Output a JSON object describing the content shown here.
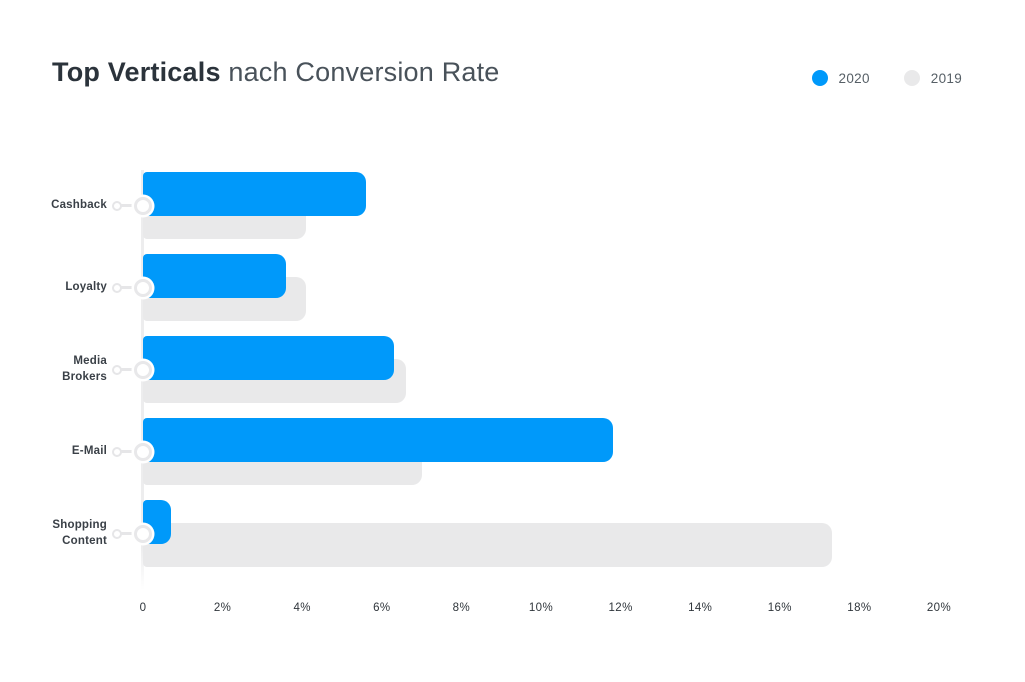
{
  "header": {
    "title_bold": "Top Verticals",
    "title_rest": " nach Conversion Rate"
  },
  "chart_data": {
    "type": "bar",
    "orientation": "horizontal",
    "title": "Top Verticals nach Conversion Rate",
    "categories": [
      "Cashback",
      "Loyalty",
      "Media Brokers",
      "E-Mail",
      "Shopping Content"
    ],
    "series": [
      {
        "name": "2020",
        "color": "#0099fa",
        "values": [
          5.6,
          3.6,
          6.3,
          11.8,
          0.7
        ]
      },
      {
        "name": "2019",
        "color": "#e9e9ea",
        "values": [
          4.1,
          4.1,
          6.6,
          7.0,
          17.3
        ]
      }
    ],
    "unit": "%",
    "xlim": [
      0,
      20
    ],
    "x_ticks": [
      "0",
      "2%",
      "4%",
      "6%",
      "8%",
      "10%",
      "12%",
      "14%",
      "16%",
      "18%",
      "20%"
    ],
    "xlabel": "",
    "ylabel": "",
    "grid": false,
    "legend_position": "top-right"
  }
}
